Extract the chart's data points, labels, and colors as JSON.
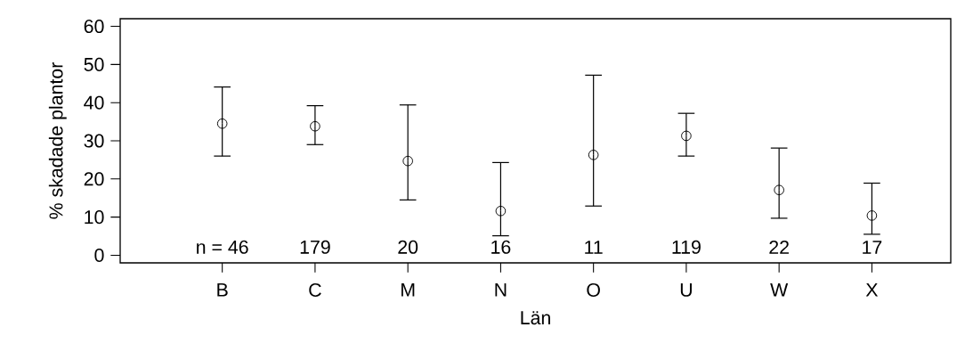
{
  "chart_data": {
    "type": "scatter",
    "xlabel": "Län",
    "ylabel": "% skadade plantor",
    "categories": [
      "B",
      "C",
      "M",
      "N",
      "O",
      "U",
      "W",
      "X"
    ],
    "values": [
      34.5,
      33.8,
      24.7,
      11.6,
      26.3,
      31.3,
      17.1,
      10.4
    ],
    "errors": [
      [
        26.0,
        44.1
      ],
      [
        29.0,
        39.2
      ],
      [
        14.5,
        39.4
      ],
      [
        5.1,
        24.3
      ],
      [
        12.9,
        47.2
      ],
      [
        26.0,
        37.2
      ],
      [
        9.7,
        28.1
      ],
      [
        5.5,
        18.9
      ]
    ],
    "color": "#000000",
    "marker": "circle",
    "ylim": [
      -2,
      62
    ],
    "yticks": [
      0,
      10,
      20,
      30,
      40,
      50,
      60
    ],
    "grid": false,
    "annotations": [
      "n = 46",
      "179",
      "20",
      "16",
      "11",
      "119",
      "22",
      "17"
    ]
  }
}
